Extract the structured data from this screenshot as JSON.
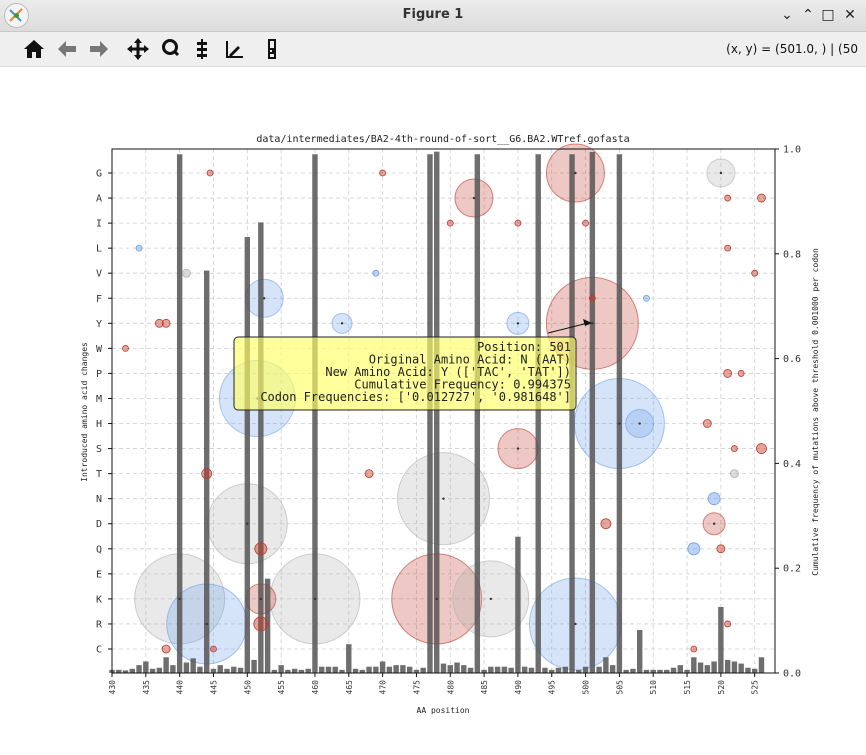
{
  "window": {
    "title": "Figure 1",
    "minimize_icon": "minimize-icon",
    "maximize_icon": "maximize-icon",
    "close_icon": "close-icon"
  },
  "toolbar": {
    "buttons": [
      {
        "name": "home-button",
        "icon": "home-icon"
      },
      {
        "name": "back-button",
        "icon": "arrow-left-icon"
      },
      {
        "name": "forward-button",
        "icon": "arrow-right-icon"
      },
      {
        "name": "pan-button",
        "icon": "move-icon"
      },
      {
        "name": "zoom-button",
        "icon": "zoom-icon"
      },
      {
        "name": "configure-subplots-button",
        "icon": "sliders-icon"
      },
      {
        "name": "edit-axis-button",
        "icon": "chart-edit-icon"
      },
      {
        "name": "save-button",
        "icon": "save-icon"
      }
    ],
    "coords_readout": "(x, y) = (501.0, ) | (50"
  },
  "chart_data": {
    "type": "scatter",
    "title": "data/intermediates/BA2-4th-round-of-sort__G6.BA2.WTref.gofasta",
    "xlabel": "AA position",
    "ylabel": "Introduced amino acid changes",
    "ylabel_right": "Cumulative frequency of mutations above threshold 0.001000 per codon",
    "xlim": [
      430,
      528
    ],
    "x_ticks": [
      430,
      435,
      440,
      445,
      450,
      455,
      460,
      465,
      470,
      475,
      480,
      485,
      490,
      495,
      500,
      505,
      510,
      515,
      520,
      525
    ],
    "y_categories": [
      "G",
      "A",
      "I",
      "L",
      "V",
      "F",
      "Y",
      "W",
      "P",
      "M",
      "H",
      "S",
      "T",
      "N",
      "D",
      "Q",
      "E",
      "K",
      "R",
      "C"
    ],
    "y2lim": [
      0,
      1.0
    ],
    "y2_ticks": [
      0.0,
      0.2,
      0.4,
      0.6,
      0.8,
      1.0
    ],
    "grid": true,
    "colors": {
      "red": "#c0392b",
      "blue": "#6d9eeb",
      "grey": "#b0b0b0",
      "bar": "#555555",
      "tooltip": "#ffff66"
    },
    "bars": [
      {
        "x": 430,
        "y": 0.006
      },
      {
        "x": 431,
        "y": 0.006
      },
      {
        "x": 432,
        "y": 0.005
      },
      {
        "x": 433,
        "y": 0.008
      },
      {
        "x": 434,
        "y": 0.015
      },
      {
        "x": 435,
        "y": 0.022
      },
      {
        "x": 436,
        "y": 0.008
      },
      {
        "x": 437,
        "y": 0.01
      },
      {
        "x": 438,
        "y": 0.03
      },
      {
        "x": 439,
        "y": 0.015
      },
      {
        "x": 440,
        "y": 0.99
      },
      {
        "x": 441,
        "y": 0.02
      },
      {
        "x": 442,
        "y": 0.028
      },
      {
        "x": 443,
        "y": 0.012
      },
      {
        "x": 444,
        "y": 0.768
      },
      {
        "x": 445,
        "y": 0.008
      },
      {
        "x": 446,
        "y": 0.015
      },
      {
        "x": 447,
        "y": 0.008
      },
      {
        "x": 448,
        "y": 0.012
      },
      {
        "x": 449,
        "y": 0.01
      },
      {
        "x": 450,
        "y": 0.832
      },
      {
        "x": 451,
        "y": 0.025
      },
      {
        "x": 452,
        "y": 0.86
      },
      {
        "x": 453,
        "y": 0.18
      },
      {
        "x": 454,
        "y": 0.006
      },
      {
        "x": 455,
        "y": 0.015
      },
      {
        "x": 456,
        "y": 0.006
      },
      {
        "x": 457,
        "y": 0.008
      },
      {
        "x": 458,
        "y": 0.006
      },
      {
        "x": 459,
        "y": 0.008
      },
      {
        "x": 460,
        "y": 0.99
      },
      {
        "x": 461,
        "y": 0.012
      },
      {
        "x": 462,
        "y": 0.012
      },
      {
        "x": 463,
        "y": 0.012
      },
      {
        "x": 464,
        "y": 0.006
      },
      {
        "x": 465,
        "y": 0.055
      },
      {
        "x": 466,
        "y": 0.008
      },
      {
        "x": 467,
        "y": 0.006
      },
      {
        "x": 468,
        "y": 0.012
      },
      {
        "x": 469,
        "y": 0.012
      },
      {
        "x": 470,
        "y": 0.022
      },
      {
        "x": 471,
        "y": 0.012
      },
      {
        "x": 472,
        "y": 0.015
      },
      {
        "x": 473,
        "y": 0.015
      },
      {
        "x": 474,
        "y": 0.012
      },
      {
        "x": 475,
        "y": 0.006
      },
      {
        "x": 476,
        "y": 0.01
      },
      {
        "x": 477,
        "y": 0.99
      },
      {
        "x": 478,
        "y": 0.995
      },
      {
        "x": 479,
        "y": 0.018
      },
      {
        "x": 480,
        "y": 0.015
      },
      {
        "x": 481,
        "y": 0.02
      },
      {
        "x": 482,
        "y": 0.015
      },
      {
        "x": 483,
        "y": 0.01
      },
      {
        "x": 484,
        "y": 0.99
      },
      {
        "x": 485,
        "y": 0.006
      },
      {
        "x": 486,
        "y": 0.012
      },
      {
        "x": 487,
        "y": 0.012
      },
      {
        "x": 488,
        "y": 0.012
      },
      {
        "x": 489,
        "y": 0.01
      },
      {
        "x": 490,
        "y": 0.26
      },
      {
        "x": 491,
        "y": 0.012
      },
      {
        "x": 492,
        "y": 0.01
      },
      {
        "x": 493,
        "y": 0.99
      },
      {
        "x": 494,
        "y": 0.01
      },
      {
        "x": 495,
        "y": 0.006
      },
      {
        "x": 496,
        "y": 0.01
      },
      {
        "x": 497,
        "y": 0.012
      },
      {
        "x": 498,
        "y": 0.99
      },
      {
        "x": 499,
        "y": 0.006
      },
      {
        "x": 500,
        "y": 0.012
      },
      {
        "x": 501,
        "y": 0.994375
      },
      {
        "x": 502,
        "y": 0.012
      },
      {
        "x": 503,
        "y": 0.03
      },
      {
        "x": 504,
        "y": 0.015
      },
      {
        "x": 505,
        "y": 0.99
      },
      {
        "x": 506,
        "y": 0.006
      },
      {
        "x": 507,
        "y": 0.008
      },
      {
        "x": 508,
        "y": 0.082
      },
      {
        "x": 509,
        "y": 0.006
      },
      {
        "x": 510,
        "y": 0.006
      },
      {
        "x": 511,
        "y": 0.006
      },
      {
        "x": 512,
        "y": 0.006
      },
      {
        "x": 513,
        "y": 0.01
      },
      {
        "x": 514,
        "y": 0.015
      },
      {
        "x": 515,
        "y": 0.006
      },
      {
        "x": 516,
        "y": 0.03
      },
      {
        "x": 517,
        "y": 0.02
      },
      {
        "x": 518,
        "y": 0.015
      },
      {
        "x": 519,
        "y": 0.022
      },
      {
        "x": 520,
        "y": 0.126
      },
      {
        "x": 521,
        "y": 0.025
      },
      {
        "x": 522,
        "y": 0.022
      },
      {
        "x": 523,
        "y": 0.018
      },
      {
        "x": 524,
        "y": 0.01
      },
      {
        "x": 525,
        "y": 0.008
      },
      {
        "x": 526,
        "y": 0.03
      }
    ],
    "points": [
      {
        "x": 498.5,
        "aa": "G",
        "r": 29,
        "c": "red"
      },
      {
        "x": 520,
        "aa": "G",
        "r": 14,
        "c": "grey"
      },
      {
        "x": 444.5,
        "aa": "G",
        "r": 3,
        "c": "red"
      },
      {
        "x": 470,
        "aa": "G",
        "r": 3,
        "c": "red"
      },
      {
        "x": 483.5,
        "aa": "A",
        "r": 19,
        "c": "red"
      },
      {
        "x": 521,
        "aa": "A",
        "r": 3,
        "c": "red"
      },
      {
        "x": 526,
        "aa": "A",
        "r": 4,
        "c": "red"
      },
      {
        "x": 490,
        "aa": "I",
        "r": 3,
        "c": "red"
      },
      {
        "x": 480,
        "aa": "I",
        "r": 3,
        "c": "red"
      },
      {
        "x": 500,
        "aa": "I",
        "r": 3,
        "c": "red"
      },
      {
        "x": 521,
        "aa": "L",
        "r": 3,
        "c": "red"
      },
      {
        "x": 434,
        "aa": "L",
        "r": 3,
        "c": "blue"
      },
      {
        "x": 441,
        "aa": "V",
        "r": 4,
        "c": "grey"
      },
      {
        "x": 469,
        "aa": "V",
        "r": 3,
        "c": "blue"
      },
      {
        "x": 525,
        "aa": "V",
        "r": 3,
        "c": "red"
      },
      {
        "x": 452.5,
        "aa": "F",
        "r": 19,
        "c": "blue"
      },
      {
        "x": 501,
        "aa": "F",
        "r": 3,
        "c": "red"
      },
      {
        "x": 509,
        "aa": "F",
        "r": 3,
        "c": "blue"
      },
      {
        "x": 501,
        "aa": "Y",
        "r": 46,
        "c": "red"
      },
      {
        "x": 464,
        "aa": "Y",
        "r": 10,
        "c": "blue"
      },
      {
        "x": 490,
        "aa": "Y",
        "r": 11,
        "c": "blue"
      },
      {
        "x": 437,
        "aa": "Y",
        "r": 4,
        "c": "red"
      },
      {
        "x": 438,
        "aa": "Y",
        "r": 4,
        "c": "red"
      },
      {
        "x": 432,
        "aa": "W",
        "r": 3,
        "c": "red"
      },
      {
        "x": 521,
        "aa": "P",
        "r": 4,
        "c": "red"
      },
      {
        "x": 523,
        "aa": "P",
        "r": 3,
        "c": "red"
      },
      {
        "x": 451.5,
        "aa": "M",
        "r": 38,
        "c": "blue"
      },
      {
        "x": 505,
        "aa": "H",
        "r": 45,
        "c": "blue"
      },
      {
        "x": 508,
        "aa": "H",
        "r": 14,
        "c": "blue"
      },
      {
        "x": 518,
        "aa": "H",
        "r": 4,
        "c": "red"
      },
      {
        "x": 490,
        "aa": "S",
        "r": 20,
        "c": "red"
      },
      {
        "x": 526,
        "aa": "S",
        "r": 5,
        "c": "red"
      },
      {
        "x": 522,
        "aa": "S",
        "r": 3,
        "c": "red"
      },
      {
        "x": 444,
        "aa": "T",
        "r": 5,
        "c": "red"
      },
      {
        "x": 468,
        "aa": "T",
        "r": 4,
        "c": "red"
      },
      {
        "x": 522,
        "aa": "T",
        "r": 4,
        "c": "grey"
      },
      {
        "x": 479,
        "aa": "N",
        "r": 46,
        "c": "grey"
      },
      {
        "x": 519,
        "aa": "N",
        "r": 6,
        "c": "blue"
      },
      {
        "x": 450,
        "aa": "D",
        "r": 40,
        "c": "grey"
      },
      {
        "x": 519,
        "aa": "D",
        "r": 11,
        "c": "red"
      },
      {
        "x": 503,
        "aa": "D",
        "r": 5,
        "c": "red"
      },
      {
        "x": 452,
        "aa": "Q",
        "r": 6,
        "c": "red"
      },
      {
        "x": 516,
        "aa": "Q",
        "r": 6,
        "c": "blue"
      },
      {
        "x": 520,
        "aa": "Q",
        "r": 4,
        "c": "red"
      },
      {
        "x": 440,
        "aa": "K",
        "r": 45,
        "c": "grey"
      },
      {
        "x": 460,
        "aa": "K",
        "r": 45,
        "c": "grey"
      },
      {
        "x": 478,
        "aa": "K",
        "r": 45,
        "c": "red"
      },
      {
        "x": 486,
        "aa": "K",
        "r": 38,
        "c": "grey"
      },
      {
        "x": 452,
        "aa": "K",
        "r": 15,
        "c": "red"
      },
      {
        "x": 444,
        "aa": "R",
        "r": 40,
        "c": "blue"
      },
      {
        "x": 498.5,
        "aa": "R",
        "r": 46,
        "c": "blue"
      },
      {
        "x": 452,
        "aa": "R",
        "r": 7,
        "c": "red"
      },
      {
        "x": 521,
        "aa": "R",
        "r": 3,
        "c": "red"
      },
      {
        "x": 438,
        "aa": "C",
        "r": 4,
        "c": "red"
      },
      {
        "x": 445,
        "aa": "C",
        "r": 3,
        "c": "red"
      },
      {
        "x": 516,
        "aa": "C",
        "r": 3,
        "c": "red"
      }
    ],
    "annotation": {
      "lines": [
        "Position: 501",
        "Original Amino Acid: N (AAT)",
        "New Amino Acid: Y (['TAC', 'TAT'])",
        "Cumulative Frequency: 0.994375",
        "Codon Frequencies: ['0.012727', '0.981648']"
      ],
      "target_x": 501,
      "target_aa": "Y"
    }
  }
}
